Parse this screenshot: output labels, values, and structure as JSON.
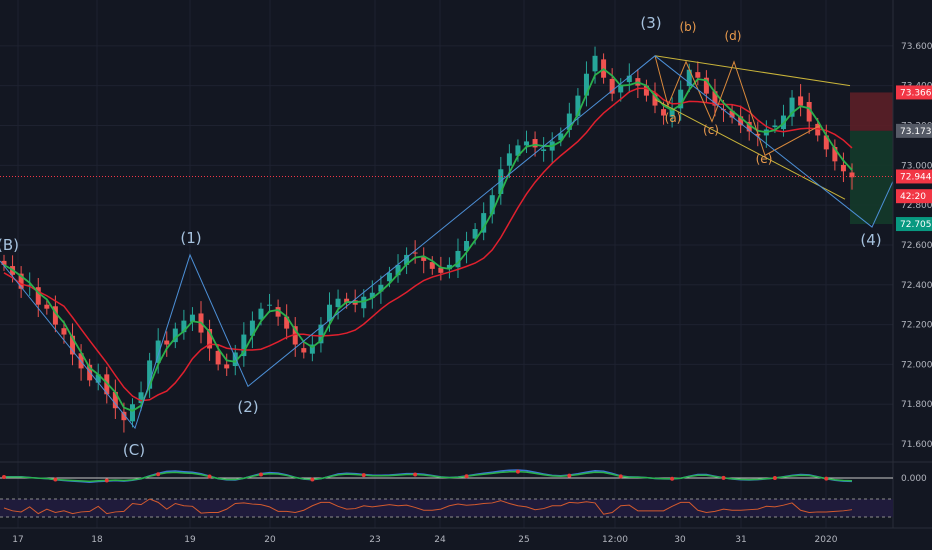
{
  "chart_data": {
    "type": "candlestick",
    "x_ticks": [
      "17",
      "18",
      "19",
      "20",
      "23",
      "24",
      "25",
      "12:00",
      "30",
      "31",
      "2020"
    ],
    "y_ticks": [
      "73.600",
      "73.400",
      "73.200",
      "73.000",
      "72.800",
      "72.600",
      "72.400",
      "72.200",
      "72.000",
      "71.800",
      "71.600"
    ],
    "ylim": [
      71.52,
      73.77
    ],
    "price_tags": [
      {
        "label": "73.366",
        "value": 73.366,
        "color": "#f23645"
      },
      {
        "label": "73.173",
        "value": 73.173,
        "color": "#555a66"
      },
      {
        "label": "72.944",
        "value": 72.944,
        "color": "#f23645"
      },
      {
        "label": "42:20",
        "value": 72.845,
        "color": "#f23645"
      },
      {
        "label": "72.705",
        "value": 72.705,
        "color": "#089981"
      }
    ],
    "current_price": 72.944,
    "wave_labels": [
      {
        "text": "(B)",
        "style": "blue"
      },
      {
        "text": "(C)",
        "style": "blue"
      },
      {
        "text": "(1)",
        "style": "blue"
      },
      {
        "text": "(2)",
        "style": "blue"
      },
      {
        "text": "(3)",
        "style": "blue"
      },
      {
        "text": "(4)",
        "style": "blue"
      },
      {
        "text": "(a)",
        "style": "orange"
      },
      {
        "text": "(b)",
        "style": "orange"
      },
      {
        "text": "(c)",
        "style": "orange"
      },
      {
        "text": "(d)",
        "style": "orange"
      },
      {
        "text": "(e)",
        "style": "orange"
      }
    ],
    "wave_path": [
      [
        0,
        72.52
      ],
      [
        135,
        71.68
      ],
      [
        190,
        72.55
      ],
      [
        248,
        71.89
      ],
      [
        655,
        73.55
      ],
      [
        872,
        72.69
      ],
      [
        893,
        72.92
      ]
    ],
    "candles": [
      72.5,
      72.45,
      72.38,
      72.4,
      72.3,
      72.28,
      72.2,
      72.15,
      72.05,
      71.98,
      71.92,
      71.95,
      71.85,
      71.78,
      71.72,
      71.8,
      71.86,
      72.02,
      72.12,
      72.1,
      72.18,
      72.22,
      72.25,
      72.16,
      72.08,
      72.0,
      71.98,
      72.06,
      72.15,
      72.22,
      72.28,
      72.3,
      72.24,
      72.18,
      72.1,
      72.06,
      72.1,
      72.2,
      72.3,
      72.33,
      72.31,
      72.3,
      72.34,
      72.36,
      72.4,
      72.46,
      72.5,
      72.55,
      72.56,
      72.52,
      72.48,
      72.46,
      72.5,
      72.57,
      72.62,
      72.68,
      72.76,
      72.85,
      72.98,
      73.06,
      73.1,
      73.12,
      73.09,
      73.08,
      73.12,
      73.16,
      73.26,
      73.35,
      73.46,
      73.55,
      73.44,
      73.36,
      73.4,
      73.45,
      73.4,
      73.35,
      73.3,
      73.25,
      73.28,
      73.38,
      73.48,
      73.44,
      73.36,
      73.3,
      73.28,
      73.24,
      73.2,
      73.17,
      73.15,
      73.18,
      73.2,
      73.25,
      73.34,
      73.3,
      73.22,
      73.15,
      73.08,
      73.02,
      72.97,
      72.94
    ],
    "indicator_zero": "0.000"
  }
}
